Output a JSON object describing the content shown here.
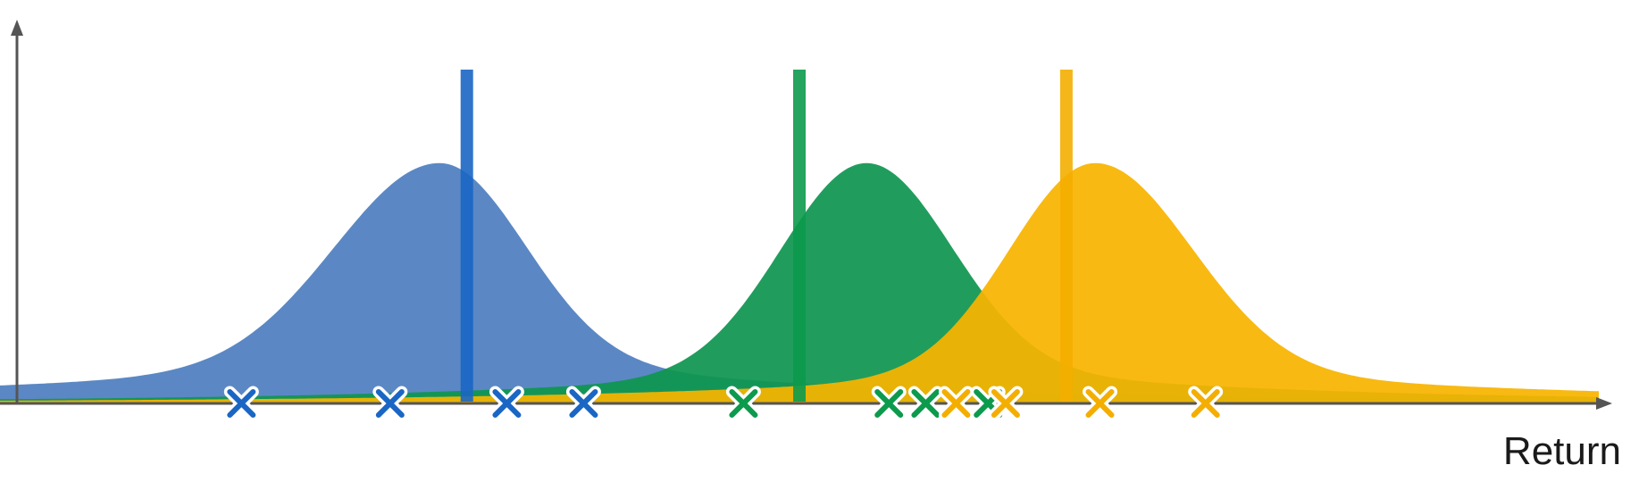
{
  "chart_data": {
    "type": "area",
    "title": "",
    "xlabel": "Return",
    "ylabel": "",
    "xlim": [
      0,
      100
    ],
    "ylim": [
      0,
      1
    ],
    "grid": false,
    "legend": "none",
    "series": [
      {
        "color": "#4f7fbf",
        "mean_line_color": "#1a66c4",
        "mean": 27.5,
        "sd_left": 6.5,
        "sd_right": 5.3,
        "tail_left": 0.15,
        "tail_right": 0.17,
        "peak": 0.72,
        "mean_line_x": 29.2,
        "samples": [
          15.1,
          24.4,
          31.7,
          36.5
        ]
      },
      {
        "color": "#0f9650",
        "mean_line_color": "#0c9a4c",
        "mean": 54.2,
        "sd_left": 5.3,
        "sd_right": 5.3,
        "tail_left": 0.12,
        "tail_right": 0.14,
        "peak": 0.72,
        "mean_line_x": 50.0,
        "samples": [
          46.5,
          55.6,
          57.9,
          61.8
        ]
      },
      {
        "color": "#f7b400",
        "mean_line_color": "#f4ae00",
        "mean": 68.5,
        "sd_left": 5.3,
        "sd_right": 6.0,
        "tail_left": 0.12,
        "tail_right": 0.13,
        "peak": 0.72,
        "mean_line_x": 66.7,
        "samples": [
          59.8,
          62.9,
          68.8,
          75.4
        ]
      }
    ]
  }
}
